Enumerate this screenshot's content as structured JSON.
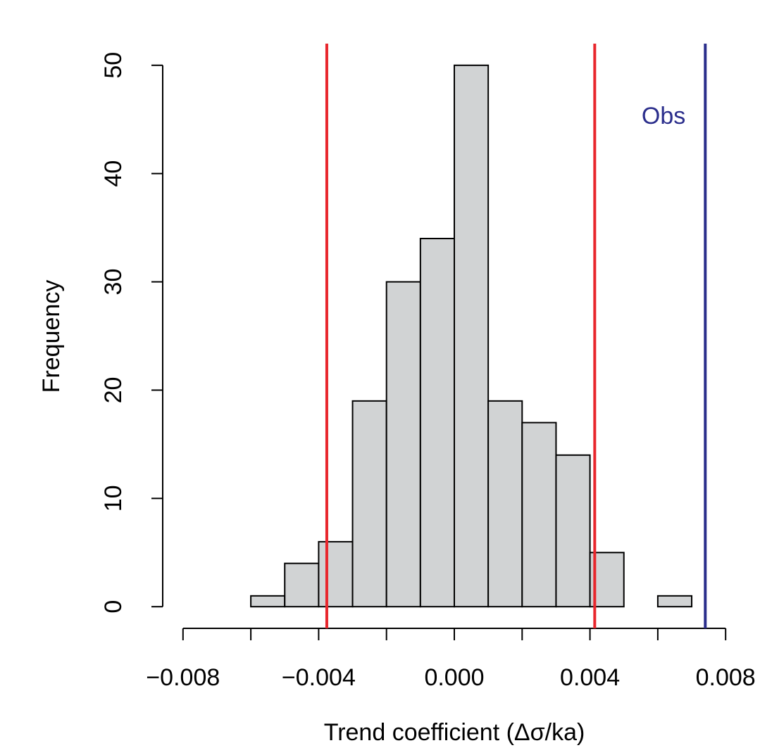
{
  "chart_data": {
    "type": "histogram",
    "xlabel": "Trend coefficient (Δσ/ka)",
    "ylabel": "Frequency",
    "bins": [
      -0.006,
      -0.005,
      -0.004,
      -0.003,
      -0.002,
      -0.001,
      0,
      0.001,
      0.002,
      0.003,
      0.004,
      0.005,
      0.006,
      0.007
    ],
    "counts": [
      1,
      4,
      6,
      19,
      30,
      34,
      50,
      19,
      17,
      14,
      5,
      0,
      1
    ],
    "color": "#d1d3d4",
    "xlim": [
      -0.00864,
      0.00864
    ],
    "ylim": [
      -2,
      52
    ],
    "xticks": [
      {
        "value": -0.008,
        "label": "−0.008"
      },
      {
        "value": -0.006,
        "label": null
      },
      {
        "value": -0.004,
        "label": "−0.004"
      },
      {
        "value": -0.002,
        "label": null
      },
      {
        "value": 0,
        "label": "0.000"
      },
      {
        "value": 0.002,
        "label": null
      },
      {
        "value": 0.004,
        "label": "0.004"
      },
      {
        "value": 0.006,
        "label": null
      },
      {
        "value": 0.008,
        "label": "0.008"
      }
    ],
    "yticks": [
      0,
      10,
      20,
      30,
      40,
      50
    ],
    "vlines": [
      {
        "value": -0.00376,
        "color": "#e8262c"
      },
      {
        "value": 0.00414,
        "color": "#e8262c"
      },
      {
        "value": 0.0074,
        "color": "#2b2e8c",
        "label": "Obs"
      }
    ]
  }
}
